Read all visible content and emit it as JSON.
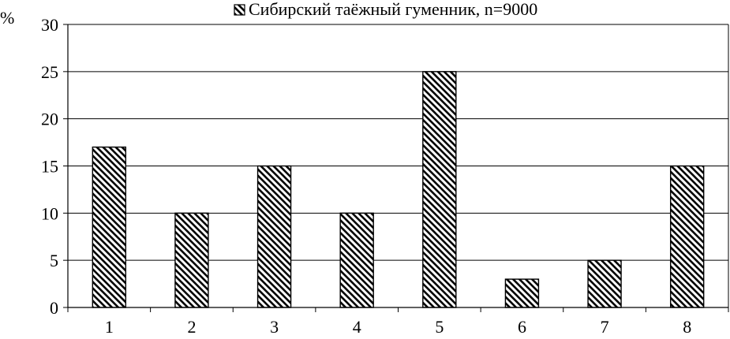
{
  "chart_data": {
    "type": "bar",
    "categories": [
      "1",
      "2",
      "3",
      "4",
      "5",
      "6",
      "7",
      "8"
    ],
    "series": [
      {
        "name": "Сибирский таёжный гуменник, n=9000",
        "values": [
          17,
          10,
          15,
          10,
          25,
          3,
          5,
          15
        ]
      }
    ],
    "ylabel": "%",
    "ylim": [
      0,
      30
    ],
    "yticks": [
      0,
      5,
      10,
      15,
      20,
      25,
      30
    ],
    "grid": true,
    "legend_position": "top"
  }
}
